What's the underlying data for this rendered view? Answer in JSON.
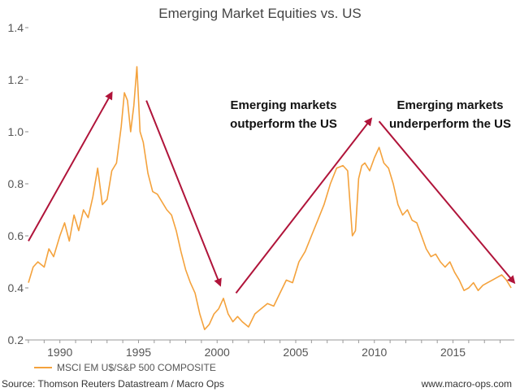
{
  "chart_data": {
    "type": "line",
    "title": "Emerging Market Equities vs. US",
    "xlabel": "",
    "ylabel": "",
    "xlim": [
      1988.0,
      2018.9
    ],
    "ylim": [
      0.2,
      1.4
    ],
    "x_ticks": [
      1990,
      1995,
      2000,
      2005,
      2010,
      2015
    ],
    "y_ticks": [
      "0.2",
      "0.4",
      "0.6",
      "0.8",
      "1.0",
      "1.2",
      "1.4"
    ],
    "grid": "none",
    "series": [
      {
        "name": "MSCI EM U$/S&P 500 COMPOSITE",
        "color": "#F4A23C",
        "x": [
          1988.0,
          1988.3,
          1988.6,
          1989.0,
          1989.3,
          1989.6,
          1990.0,
          1990.3,
          1990.6,
          1990.9,
          1991.2,
          1991.5,
          1991.8,
          1992.1,
          1992.4,
          1992.7,
          1993.0,
          1993.3,
          1993.6,
          1993.9,
          1994.1,
          1994.3,
          1994.5,
          1994.7,
          1994.9,
          1995.1,
          1995.3,
          1995.6,
          1995.9,
          1996.2,
          1996.5,
          1996.8,
          1997.1,
          1997.4,
          1997.7,
          1998.0,
          1998.3,
          1998.6,
          1998.9,
          1999.2,
          1999.5,
          1999.8,
          2000.1,
          2000.4,
          2000.7,
          2001.0,
          2001.3,
          2001.6,
          2002.0,
          2002.4,
          2002.8,
          2003.2,
          2003.6,
          2004.0,
          2004.4,
          2004.8,
          2005.2,
          2005.6,
          2006.0,
          2006.4,
          2006.8,
          2007.2,
          2007.6,
          2008.0,
          2008.3,
          2008.6,
          2008.8,
          2009.0,
          2009.2,
          2009.4,
          2009.7,
          2010.0,
          2010.3,
          2010.6,
          2010.9,
          2011.2,
          2011.5,
          2011.8,
          2012.1,
          2012.4,
          2012.7,
          2013.0,
          2013.3,
          2013.6,
          2013.9,
          2014.2,
          2014.5,
          2014.8,
          2015.1,
          2015.4,
          2015.7,
          2016.0,
          2016.3,
          2016.6,
          2016.9,
          2017.2,
          2017.5,
          2017.8,
          2018.1,
          2018.4,
          2018.7
        ],
        "values": [
          0.42,
          0.48,
          0.5,
          0.48,
          0.55,
          0.52,
          0.6,
          0.65,
          0.58,
          0.68,
          0.62,
          0.7,
          0.67,
          0.75,
          0.86,
          0.72,
          0.74,
          0.85,
          0.88,
          1.02,
          1.15,
          1.12,
          1.0,
          1.1,
          1.25,
          1.0,
          0.96,
          0.84,
          0.77,
          0.76,
          0.73,
          0.7,
          0.68,
          0.62,
          0.54,
          0.47,
          0.42,
          0.38,
          0.3,
          0.24,
          0.26,
          0.3,
          0.32,
          0.36,
          0.3,
          0.27,
          0.29,
          0.27,
          0.25,
          0.3,
          0.32,
          0.34,
          0.33,
          0.38,
          0.43,
          0.42,
          0.5,
          0.54,
          0.6,
          0.66,
          0.72,
          0.8,
          0.86,
          0.87,
          0.85,
          0.6,
          0.62,
          0.82,
          0.87,
          0.88,
          0.85,
          0.9,
          0.94,
          0.88,
          0.86,
          0.8,
          0.72,
          0.68,
          0.7,
          0.66,
          0.65,
          0.6,
          0.55,
          0.52,
          0.53,
          0.5,
          0.48,
          0.5,
          0.46,
          0.43,
          0.39,
          0.4,
          0.42,
          0.39,
          0.41,
          0.42,
          0.43,
          0.44,
          0.45,
          0.43,
          0.4
        ]
      }
    ],
    "annotations": [
      {
        "lines": [
          "Emerging markets",
          "outperform the US"
        ]
      },
      {
        "lines": [
          "Emerging markets",
          "underperform the US"
        ]
      }
    ],
    "arrows": [
      {
        "from": [
          1988.0,
          0.58
        ],
        "to": [
          1993.3,
          1.15
        ]
      },
      {
        "from": [
          1995.5,
          1.12
        ],
        "to": [
          2000.2,
          0.41
        ]
      },
      {
        "from": [
          2001.2,
          0.38
        ],
        "to": [
          2009.8,
          1.05
        ]
      },
      {
        "from": [
          2010.3,
          1.04
        ],
        "to": [
          2018.9,
          0.42
        ]
      }
    ],
    "arrow_color": "#B0143A",
    "legend": {
      "position": "bottom-left",
      "label": "MSCI EM U$/S&P 500 COMPOSITE"
    }
  },
  "footer": {
    "source": "Source: Thomson Reuters Datastream / Macro Ops",
    "website": "www.macro-ops.com"
  }
}
